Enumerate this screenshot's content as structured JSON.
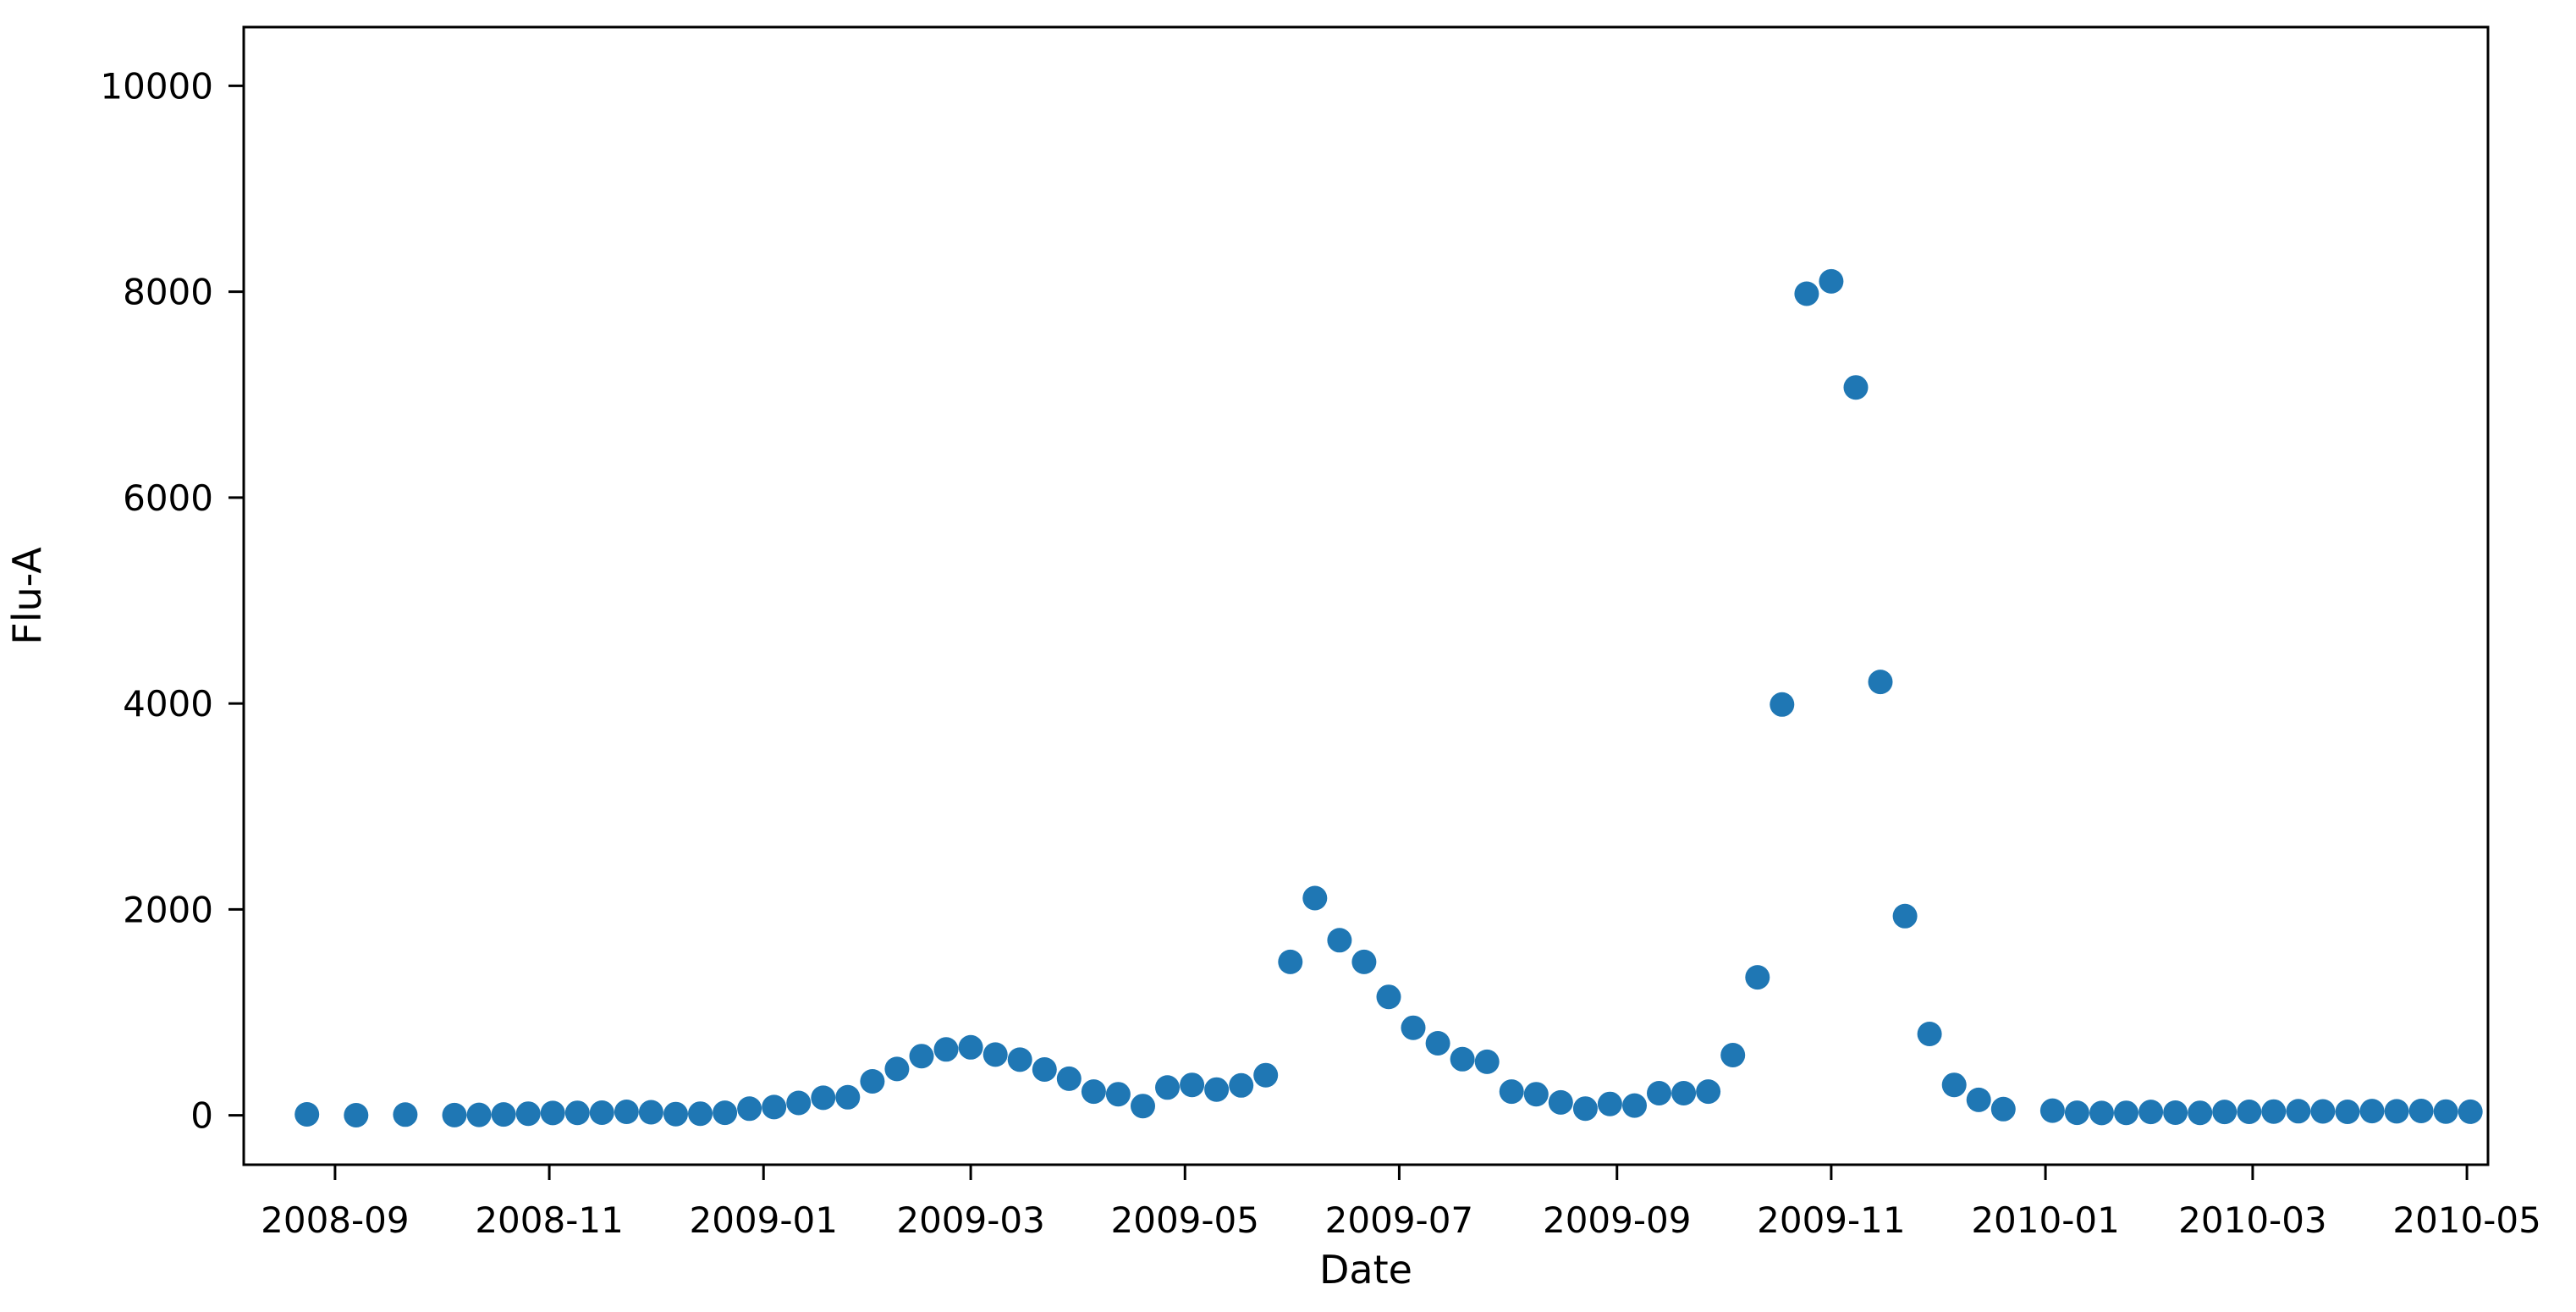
{
  "figure": {
    "background": "#ffffff",
    "plot_background": "#ffffff"
  },
  "chart_data": {
    "type": "scatter",
    "title": "",
    "xlabel": "Date",
    "ylabel": "Flu-A",
    "marker_color": "#1f77b4",
    "axis_color": "#000000",
    "grid": false,
    "legend": null,
    "x_tick_labels": [
      "2008-09",
      "2008-11",
      "2009-01",
      "2009-03",
      "2009-05",
      "2009-07",
      "2009-09",
      "2009-11",
      "2010-01",
      "2010-03",
      "2010-05"
    ],
    "y_ticks": [
      0,
      2000,
      4000,
      6000,
      8000,
      10000
    ],
    "x_range": [
      "2008-08-06",
      "2010-05-07"
    ],
    "y_range": [
      -480,
      10570
    ],
    "series": [
      {
        "name": "Flu-A",
        "dates": [
          "2008-08-24",
          "2008-09-07",
          "2008-09-21",
          "2008-10-05",
          "2008-10-12",
          "2008-10-19",
          "2008-10-26",
          "2008-11-02",
          "2008-11-09",
          "2008-11-16",
          "2008-11-23",
          "2008-11-30",
          "2008-12-07",
          "2008-12-14",
          "2008-12-21",
          "2008-12-28",
          "2009-01-04",
          "2009-01-11",
          "2009-01-18",
          "2009-01-25",
          "2009-02-01",
          "2009-02-08",
          "2009-02-15",
          "2009-02-22",
          "2009-03-01",
          "2009-03-08",
          "2009-03-15",
          "2009-03-22",
          "2009-03-29",
          "2009-04-05",
          "2009-04-12",
          "2009-04-19",
          "2009-04-26",
          "2009-05-03",
          "2009-05-10",
          "2009-05-17",
          "2009-05-24",
          "2009-05-31",
          "2009-06-07",
          "2009-06-14",
          "2009-06-21",
          "2009-06-28",
          "2009-07-05",
          "2009-07-12",
          "2009-07-19",
          "2009-07-26",
          "2009-08-02",
          "2009-08-09",
          "2009-08-16",
          "2009-08-23",
          "2009-08-30",
          "2009-09-06",
          "2009-09-13",
          "2009-09-20",
          "2009-09-27",
          "2009-10-04",
          "2009-10-11",
          "2009-10-18",
          "2009-10-25",
          "2009-11-01",
          "2009-11-08",
          "2009-11-15",
          "2009-11-22",
          "2009-11-29",
          "2009-12-06",
          "2009-12-13",
          "2009-12-20",
          "2010-01-03",
          "2010-01-10",
          "2010-01-17",
          "2010-01-24",
          "2010-01-31",
          "2010-02-07",
          "2010-02-14",
          "2010-02-21",
          "2010-02-28",
          "2010-03-07",
          "2010-03-14",
          "2010-03-21",
          "2010-03-28",
          "2010-04-04",
          "2010-04-11",
          "2010-04-18",
          "2010-04-25",
          "2010-05-02"
        ],
        "values": [
          9,
          1,
          7,
          2,
          4,
          8,
          16,
          22,
          24,
          26,
          34,
          30,
          12,
          16,
          25,
          64,
          80,
          120,
          170,
          175,
          330,
          450,
          575,
          640,
          660,
          590,
          540,
          445,
          355,
          230,
          205,
          90,
          270,
          295,
          250,
          290,
          390,
          1490,
          2110,
          1700,
          1490,
          1150,
          850,
          700,
          545,
          520,
          230,
          205,
          125,
          65,
          110,
          95,
          215,
          215,
          230,
          585,
          1340,
          3990,
          7980,
          8100,
          7070,
          4210,
          1935,
          790,
          295,
          150,
          60,
          45,
          25,
          22,
          24,
          33,
          26,
          24,
          33,
          34,
          36,
          40,
          38,
          34,
          41,
          39,
          42,
          36,
          35
        ]
      }
    ]
  }
}
